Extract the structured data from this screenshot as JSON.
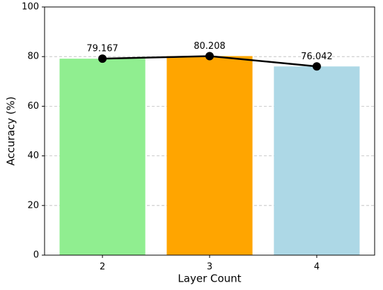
{
  "chart_data": {
    "type": "bar",
    "x_label": "Layer Count",
    "y_label": "Accuracy (%)",
    "categories": [
      "2",
      "3",
      "4"
    ],
    "values": [
      79.167,
      80.208,
      76.042
    ],
    "colors": [
      "#90ee90",
      "#ffa500",
      "#add8e6"
    ],
    "line_color": "#000000",
    "ylim": [
      0,
      100
    ],
    "yticks": [
      0,
      20,
      40,
      60,
      80,
      100
    ],
    "grid": true
  }
}
